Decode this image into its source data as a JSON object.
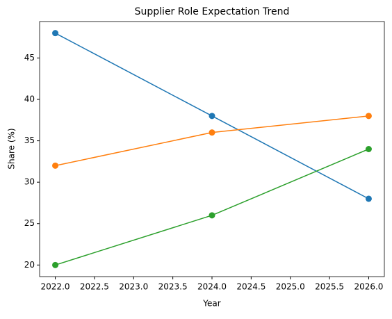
{
  "chart_data": {
    "type": "line",
    "title": "Supplier Role Expectation Trend",
    "x_label": "Year",
    "y_label": "Share (%)",
    "x": [
      2022,
      2024,
      2026
    ],
    "series": [
      {
        "color": "#1f77b4",
        "values": [
          48,
          38,
          28
        ]
      },
      {
        "color": "#ff7f0e",
        "values": [
          32,
          36,
          38
        ]
      },
      {
        "color": "#2ca02c",
        "values": [
          20,
          26,
          34
        ]
      }
    ],
    "xlim": [
      2021.8,
      2026.2
    ],
    "xticks": [
      {
        "value": 2022,
        "label": "2022.0"
      },
      2022.5,
      {
        "value": 2023,
        "label": "2023.0"
      },
      2023.5,
      {
        "value": 2024,
        "label": "2024.0"
      },
      2024.5,
      {
        "value": 2025,
        "label": "2025.0"
      },
      2025.5,
      {
        "value": 2026,
        "label": "2026.0"
      }
    ],
    "ylim": [
      18.6,
      49.4
    ],
    "yticks": [
      20,
      25,
      30,
      35,
      40,
      45
    ],
    "grid": false,
    "markers": true
  }
}
